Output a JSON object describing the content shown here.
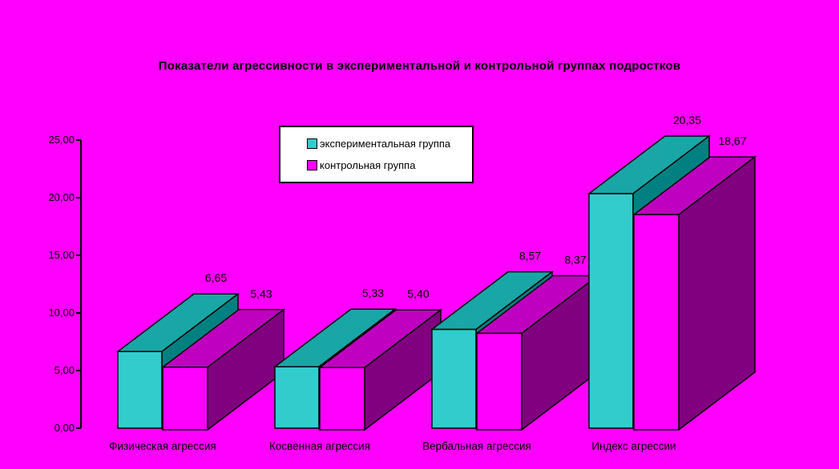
{
  "colors": {
    "background": "#FF00FF",
    "outline": "#000000",
    "text": "#000000",
    "legend_bg": "#FFFFFF",
    "series1_front": "#33CCCC",
    "series1_dark": "#008080",
    "series2_front": "#FF00FF",
    "series2_dark": "#800080"
  },
  "chart_data": {
    "type": "bar",
    "projection": "3d",
    "title": "Показатели агрессивности в экспериментальной и контрольной группах подростков",
    "categories": [
      "Физическая агрессия",
      "Косвенная агрессия",
      "Вербальная агрессия",
      "Индекс агрессии"
    ],
    "series": [
      {
        "name": "экспериментальная группа",
        "color": "#33CCCC",
        "dark": "#008080",
        "values": [
          6.65,
          5.33,
          8.57,
          20.35
        ]
      },
      {
        "name": "контрольная группа",
        "color": "#FF00FF",
        "dark": "#800080",
        "values": [
          5.43,
          5.4,
          8.37,
          18.67
        ]
      }
    ],
    "value_labels": [
      [
        "6,65",
        "5,33",
        "8,57",
        "20,35"
      ],
      [
        "5,43",
        "5,40",
        "8,37",
        "18,67"
      ]
    ],
    "y_axis": {
      "min": 0,
      "max": 25,
      "step": 5,
      "tick_labels": [
        "0,00",
        "5,00",
        "10,00",
        "15,00",
        "20,00",
        "25,00"
      ]
    },
    "grid": false,
    "legend_position": "top-center"
  }
}
